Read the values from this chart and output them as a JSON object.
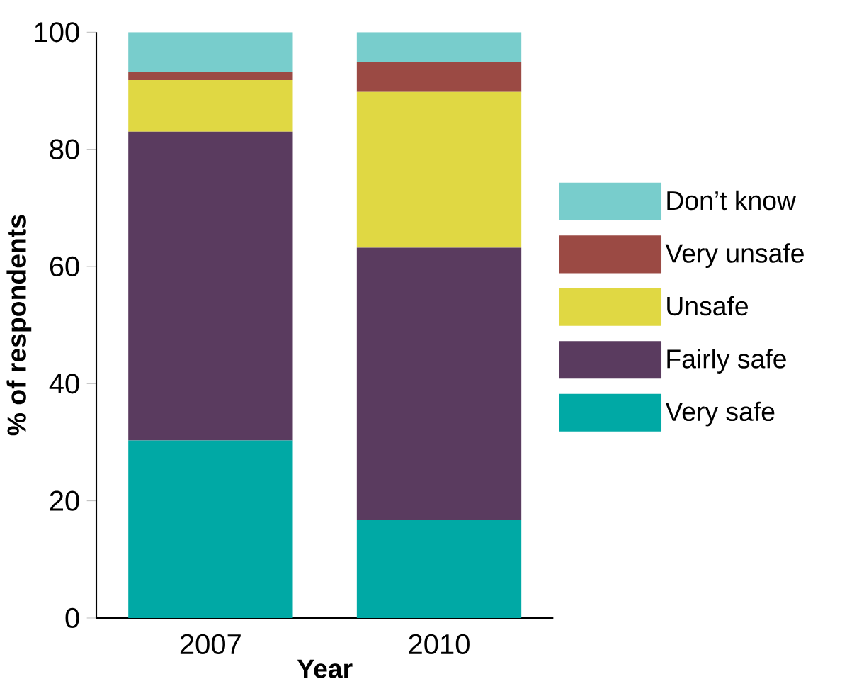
{
  "chart_data": {
    "type": "bar",
    "stacked": true,
    "xlabel": "Year",
    "ylabel": "% of respondents",
    "categories": [
      "2007",
      "2010"
    ],
    "series": [
      {
        "name": "Very safe",
        "color": "#00a9a5",
        "values": [
          30.3,
          16.7
        ]
      },
      {
        "name": "Fairly safe",
        "color": "#5a3b5f",
        "values": [
          52.7,
          46.5
        ]
      },
      {
        "name": "Unsafe",
        "color": "#e0d843",
        "values": [
          8.8,
          26.6
        ]
      },
      {
        "name": "Very unsafe",
        "color": "#9b4a44",
        "values": [
          1.4,
          5.1
        ]
      },
      {
        "name": "Don’t know",
        "color": "#78cdcc",
        "values": [
          6.8,
          5.1
        ]
      }
    ],
    "ylim": [
      0,
      100
    ],
    "yticks": [
      0,
      20,
      40,
      60,
      80,
      100
    ],
    "legend": "right"
  }
}
